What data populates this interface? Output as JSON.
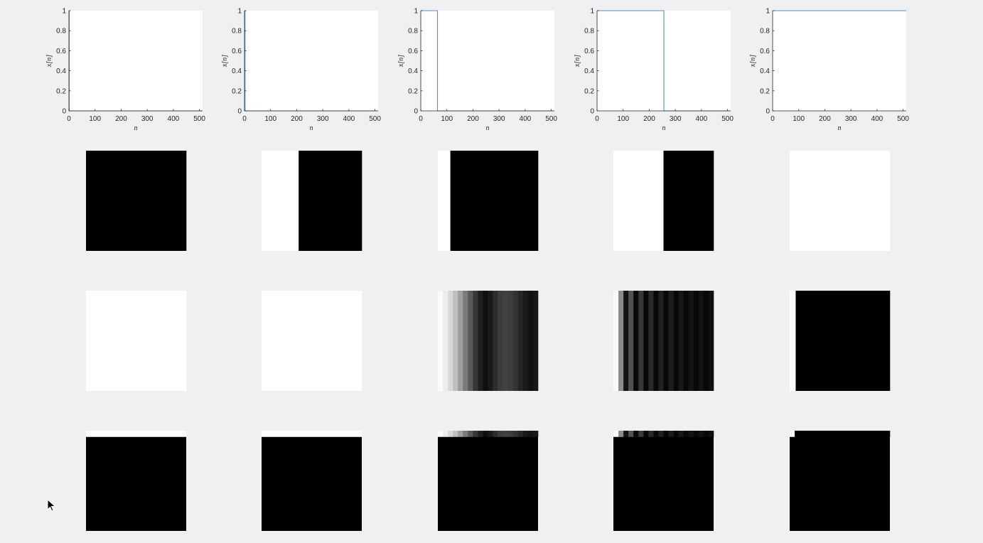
{
  "chart_data": {
    "type": "figure-grid",
    "layout": {
      "rows": 4,
      "columns": 5
    },
    "line_plots": [
      {
        "type": "line",
        "xlabel": "n",
        "ylabel": "x[n]",
        "xlim": [
          0,
          512
        ],
        "ylim": [
          0,
          1
        ],
        "xticks": [
          0,
          100,
          200,
          300,
          400,
          500
        ],
        "yticks": [
          0,
          0.2,
          0.4,
          0.6,
          0.8,
          1
        ],
        "series": [
          {
            "color": "#4d8fd0",
            "x": [
              0,
              1,
              1,
              512
            ],
            "y": [
              1,
              1,
              0,
              0
            ]
          }
        ]
      },
      {
        "type": "line",
        "xlabel": "n",
        "ylabel": "x[n]",
        "xlim": [
          0,
          512
        ],
        "ylim": [
          0,
          1
        ],
        "xticks": [
          0,
          100,
          200,
          300,
          400,
          500
        ],
        "yticks": [
          0,
          0.2,
          0.4,
          0.6,
          0.8,
          1
        ],
        "series": [
          {
            "color": "#4d8fd0",
            "x": [
              0,
              2,
              2,
              512
            ],
            "y": [
              1,
              1,
              0,
              0
            ]
          }
        ]
      },
      {
        "type": "line",
        "xlabel": "n",
        "ylabel": "x[n]",
        "xlim": [
          0,
          512
        ],
        "ylim": [
          0,
          1
        ],
        "xticks": [
          0,
          100,
          200,
          300,
          400,
          500
        ],
        "yticks": [
          0,
          0.2,
          0.4,
          0.6,
          0.8,
          1
        ],
        "series": [
          {
            "color": "#4d8fd0",
            "x": [
              0,
              64,
              64,
              512
            ],
            "y": [
              1,
              1,
              0,
              0
            ]
          }
        ]
      },
      {
        "type": "line",
        "xlabel": "n",
        "ylabel": "x[n]",
        "xlim": [
          0,
          512
        ],
        "ylim": [
          0,
          1
        ],
        "xticks": [
          0,
          100,
          200,
          300,
          400,
          500
        ],
        "yticks": [
          0,
          0.2,
          0.4,
          0.6,
          0.8,
          1
        ],
        "series": [
          {
            "color": "#4d8fd0",
            "x": [
              0,
              256,
              256,
              512
            ],
            "y": [
              1,
              1,
              0,
              0
            ]
          }
        ]
      },
      {
        "type": "line",
        "xlabel": "n",
        "ylabel": "x[n]",
        "xlim": [
          0,
          512
        ],
        "ylim": [
          0,
          1
        ],
        "xticks": [
          0,
          100,
          200,
          300,
          400,
          500
        ],
        "yticks": [
          0,
          0.2,
          0.4,
          0.6,
          0.8,
          1
        ],
        "series": [
          {
            "color": "#4d8fd0",
            "x": [
              0,
              512
            ],
            "y": [
              1,
              1
            ]
          }
        ]
      }
    ],
    "image_rows": [
      [
        {
          "type": "heatmap",
          "bands": [
            {
              "from": 0,
              "to": 1,
              "value": 0
            }
          ]
        },
        {
          "type": "heatmap",
          "bands": [
            {
              "from": 0,
              "to": 0.37,
              "value": 1
            },
            {
              "from": 0.37,
              "to": 1,
              "value": 0
            }
          ]
        },
        {
          "type": "heatmap",
          "bands": [
            {
              "from": 0,
              "to": 0.125,
              "value": 1
            },
            {
              "from": 0.125,
              "to": 1,
              "value": 0
            }
          ]
        },
        {
          "type": "heatmap",
          "bands": [
            {
              "from": 0,
              "to": 0.5,
              "value": 1
            },
            {
              "from": 0.5,
              "to": 1,
              "value": 0
            }
          ]
        },
        {
          "type": "heatmap",
          "bands": [
            {
              "from": 0,
              "to": 1,
              "value": 1
            }
          ]
        }
      ],
      [
        {
          "type": "heatmap",
          "bands": [
            {
              "from": 0,
              "to": 1,
              "value": 1
            }
          ]
        },
        {
          "type": "heatmap",
          "bands": [
            {
              "from": 0,
              "to": 1,
              "value": 1
            }
          ]
        },
        {
          "type": "heatmap",
          "columns": [
            0.98,
            0.93,
            0.85,
            0.75,
            0.62,
            0.48,
            0.35,
            0.22,
            0.12,
            0.06,
            0.1,
            0.18,
            0.24,
            0.26,
            0.24,
            0.2,
            0.15,
            0.1,
            0.07,
            0.09
          ]
        },
        {
          "type": "heatmap",
          "columns": [
            0.98,
            0.55,
            0.08,
            0.32,
            0.04,
            0.22,
            0.03,
            0.16,
            0.03,
            0.13,
            0.03,
            0.11,
            0.03,
            0.09,
            0.03,
            0.08,
            0.03,
            0.07,
            0.03,
            0.06
          ]
        },
        {
          "type": "heatmap",
          "bands": [
            {
              "from": 0,
              "to": 0.06,
              "value": 1
            },
            {
              "from": 0.06,
              "to": 1,
              "value": 0
            }
          ]
        }
      ],
      [
        {
          "type": "heatmap",
          "top_fraction": 0.06,
          "top_columns": [
            1
          ],
          "rest_value": 0
        },
        {
          "type": "heatmap",
          "top_fraction": 0.06,
          "top_columns": [
            1
          ],
          "rest_value": 0
        },
        {
          "type": "heatmap",
          "top_fraction": 0.06,
          "top_columns": [
            0.98,
            0.93,
            0.85,
            0.75,
            0.62,
            0.48,
            0.35,
            0.22,
            0.12,
            0.06,
            0.1,
            0.18,
            0.24,
            0.26,
            0.24,
            0.2,
            0.15,
            0.1,
            0.07,
            0.09
          ],
          "rest_value": 0
        },
        {
          "type": "heatmap",
          "top_fraction": 0.06,
          "top_columns": [
            0.98,
            0.55,
            0.08,
            0.32,
            0.04,
            0.22,
            0.03,
            0.16,
            0.03,
            0.13,
            0.03,
            0.11,
            0.03,
            0.09,
            0.03,
            0.08,
            0.03,
            0.07,
            0.03,
            0.06
          ],
          "rest_value": 0
        },
        {
          "type": "heatmap",
          "top_fraction": 0.06,
          "top_columns": [
            1,
            0,
            0,
            0,
            0,
            0,
            0,
            0,
            0,
            0,
            0,
            0,
            0,
            0,
            0,
            0,
            0,
            0,
            0,
            0
          ],
          "rest_value": 0
        }
      ]
    ]
  }
}
